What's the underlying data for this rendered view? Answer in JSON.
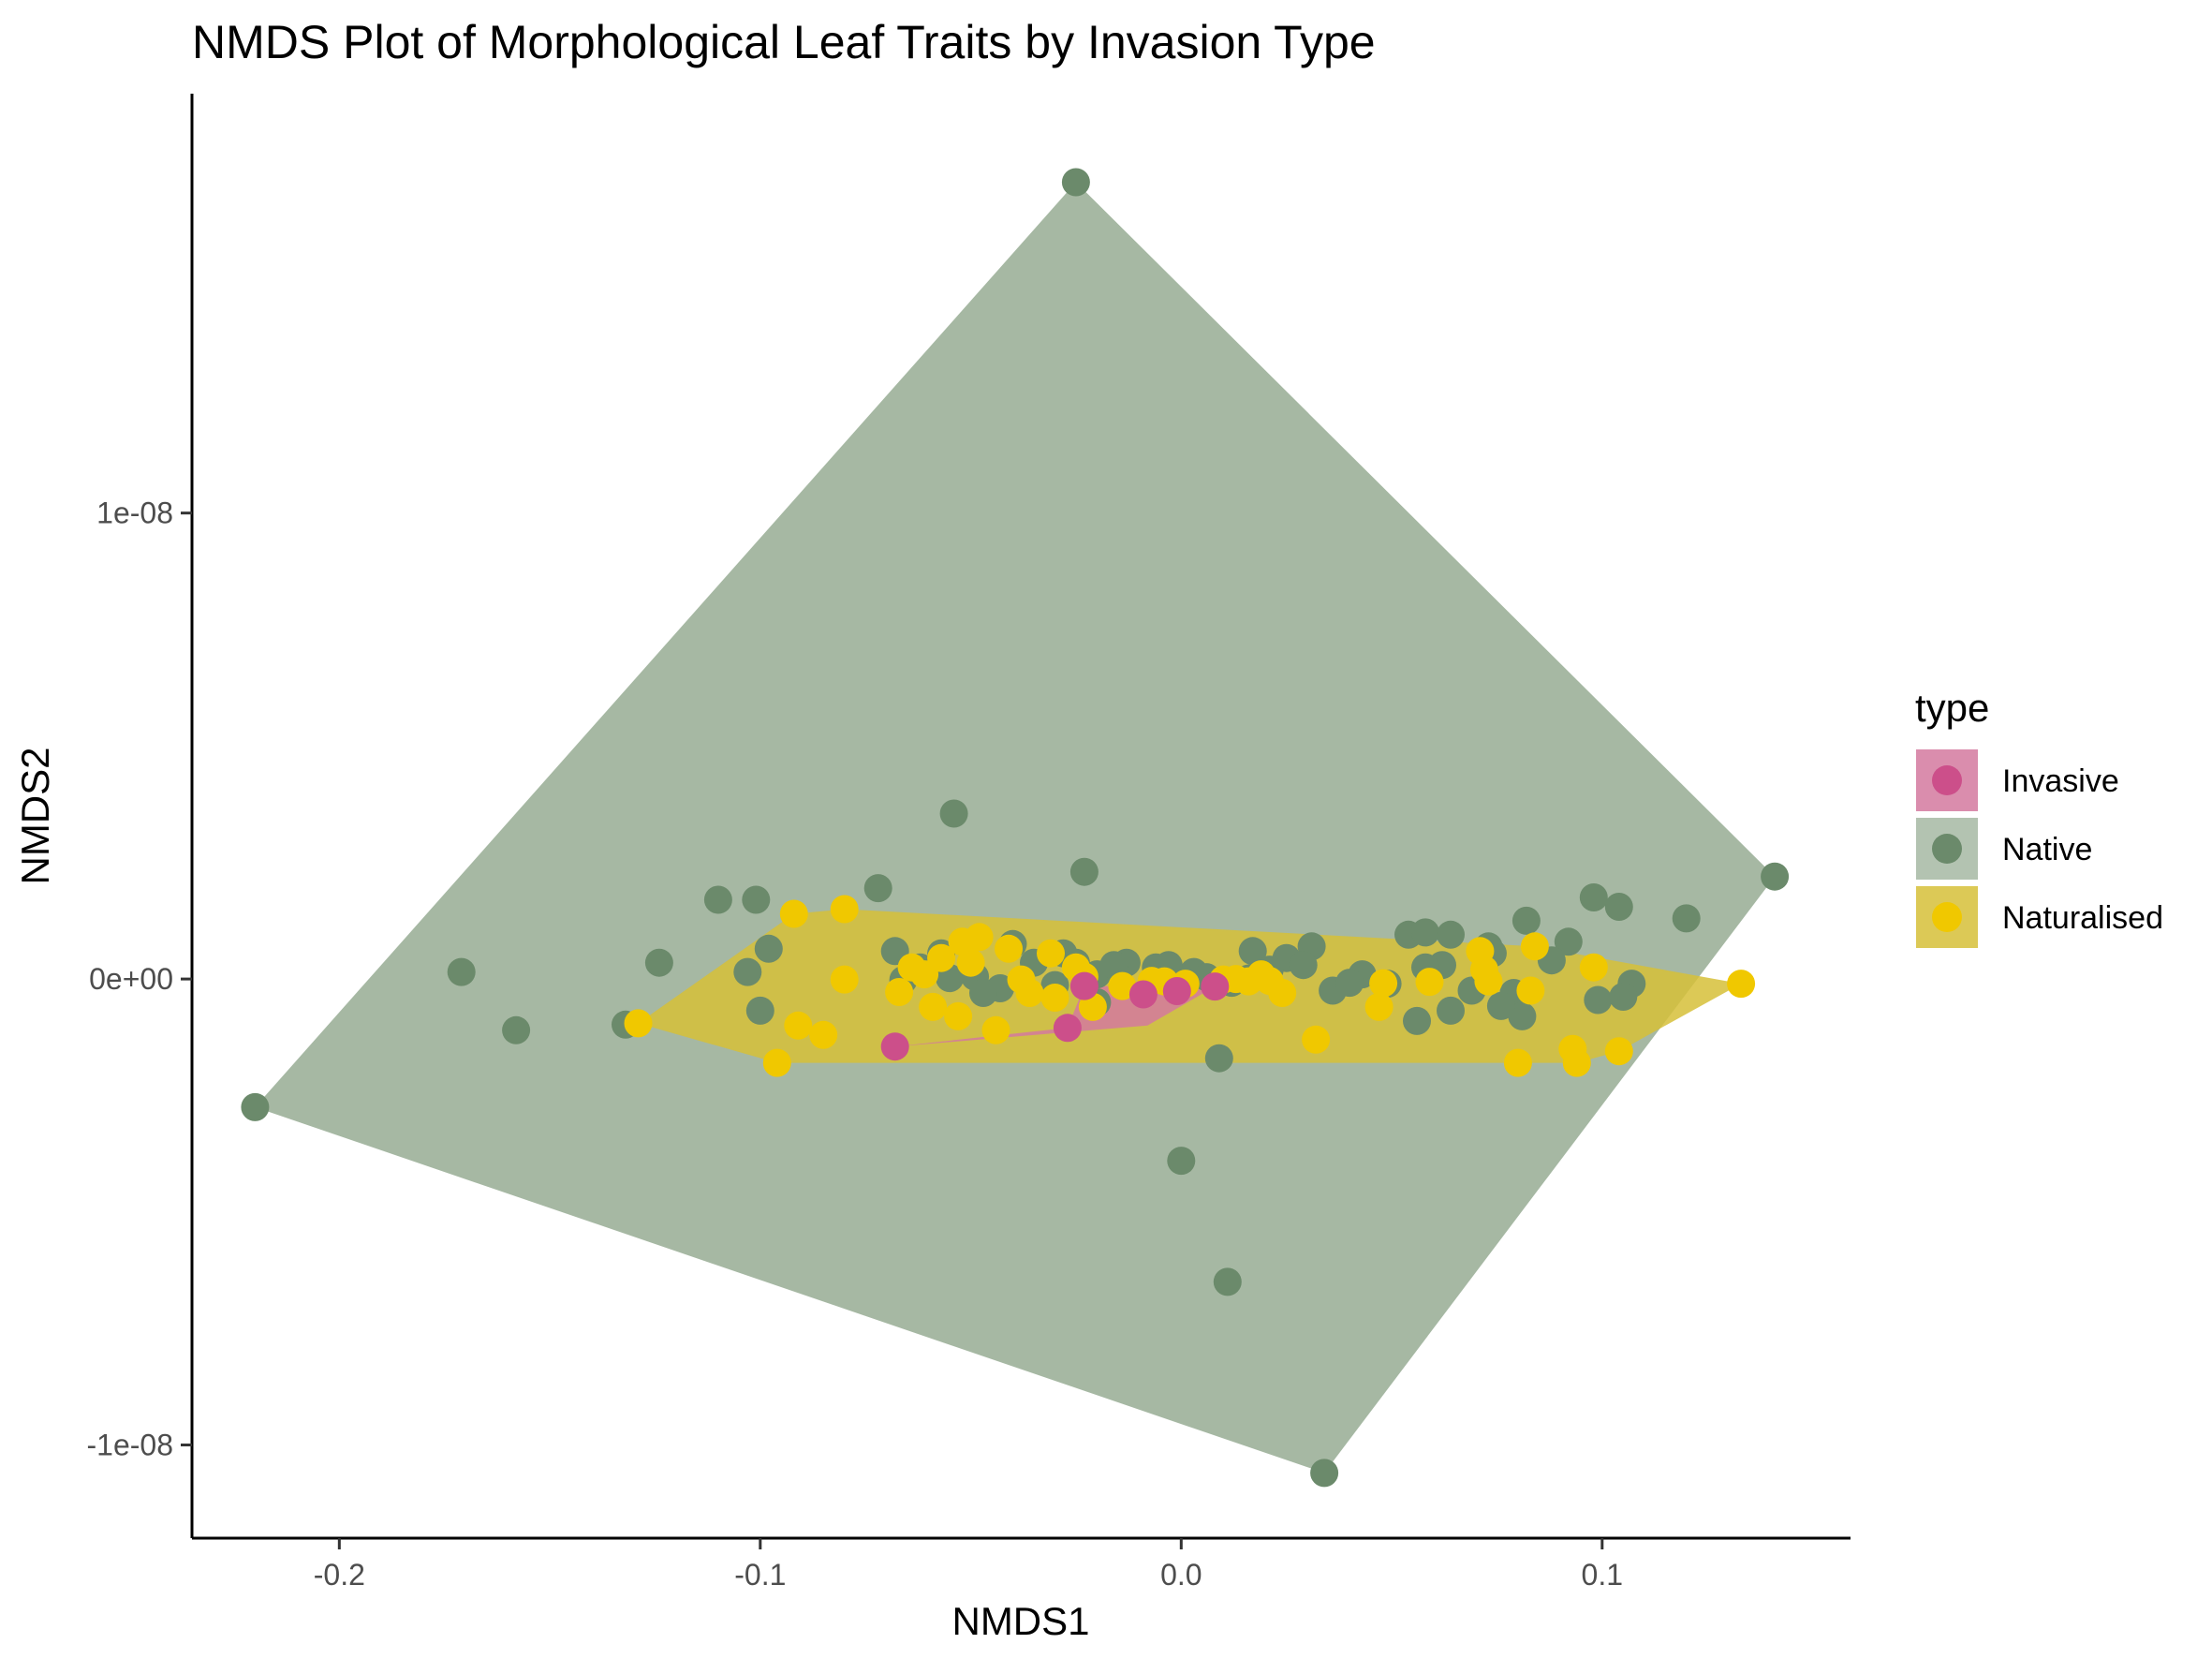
{
  "chart_data": {
    "type": "scatter",
    "title": "NMDS Plot of Morphological Leaf Traits by Invasion Type",
    "xlabel": "NMDS1",
    "ylabel": "NMDS2",
    "xlim": [
      -0.235,
      0.159
    ],
    "ylim": [
      -1.2e-08,
      1.9e-08
    ],
    "x_ticks": [
      -0.2,
      -0.1,
      0.0,
      0.1
    ],
    "x_tick_labels": [
      "-0.2",
      "-0.1",
      "0.0",
      "0.1"
    ],
    "y_ticks": [
      -1e-08,
      0,
      1e-08
    ],
    "y_tick_labels": [
      "-1e-08",
      "0e+00",
      "1e-08"
    ],
    "grid": false,
    "legend": {
      "title": "type",
      "position": "right"
    },
    "series": [
      {
        "name": "Invasive",
        "color": "#cc4f8a",
        "hull_color": "#d4799f",
        "hull": [
          [
            -0.068,
            -1.45e-09
          ],
          [
            -0.027,
            -1.05e-09
          ],
          [
            -0.023,
            -1.5e-10
          ],
          [
            0.008,
            -1.6e-10
          ],
          [
            -0.008,
            -1e-09
          ]
        ],
        "points": [
          [
            -0.068,
            -1.45e-09
          ],
          [
            -0.027,
            -1.05e-09
          ],
          [
            -0.023,
            -1.5e-10
          ],
          [
            -0.009,
            -3.3e-10
          ],
          [
            -0.001,
            -2.6e-10
          ],
          [
            0.008,
            -1.6e-10
          ]
        ]
      },
      {
        "name": "Native",
        "color": "#6b8a6b",
        "hull_color": "#a6b8a3",
        "hull": [
          [
            -0.22,
            -2.75e-09
          ],
          [
            -0.025,
            1.71e-08
          ],
          [
            0.141,
            2.2e-09
          ],
          [
            0.034,
            -1.06e-08
          ]
        ],
        "points": [
          [
            -0.22,
            -2.75e-09
          ],
          [
            -0.025,
            1.71e-08
          ],
          [
            0.141,
            2.2e-09
          ],
          [
            0.034,
            -1.06e-08
          ],
          [
            -0.054,
            3.55e-09
          ],
          [
            -0.023,
            2.3e-09
          ],
          [
            -0.072,
            1.95e-09
          ],
          [
            -0.11,
            1.7e-09
          ],
          [
            -0.101,
            1.7e-09
          ],
          [
            -0.171,
            1.5e-10
          ],
          [
            -0.158,
            -1.1e-09
          ],
          [
            -0.124,
            3.5e-10
          ],
          [
            -0.098,
            6.5e-10
          ],
          [
            -0.103,
            1.5e-10
          ],
          [
            -0.132,
            -9.8e-10
          ],
          [
            -0.1,
            -6.8e-10
          ],
          [
            -0.068,
            6e-10
          ],
          [
            -0.062,
            2.5e-10
          ],
          [
            -0.057,
            5.5e-10
          ],
          [
            -0.049,
            5e-11
          ],
          [
            -0.043,
            -2e-10
          ],
          [
            -0.04,
            7.5e-10
          ],
          [
            -0.035,
            3.5e-10
          ],
          [
            -0.028,
            5.5e-10
          ],
          [
            -0.02,
            1e-10
          ],
          [
            -0.013,
            3.5e-10
          ],
          [
            -0.006,
            2.5e-10
          ],
          [
            0.003,
            1.5e-10
          ],
          [
            0.012,
            -8e-11
          ],
          [
            0.017,
            6e-10
          ],
          [
            0.025,
            4.5e-10
          ],
          [
            0.031,
            7e-10
          ],
          [
            0.036,
            -2.5e-10
          ],
          [
            0.043,
            1e-10
          ],
          [
            0.054,
            9.5e-10
          ],
          [
            0.058,
            1e-09
          ],
          [
            0.064,
            9.5e-10
          ],
          [
            0.069,
            -2.5e-10
          ],
          [
            0.074,
            5.5e-10
          ],
          [
            0.079,
            -3e-10
          ],
          [
            0.082,
            1.25e-09
          ],
          [
            0.092,
            8e-10
          ],
          [
            0.098,
            1.75e-09
          ],
          [
            0.104,
            1.55e-09
          ],
          [
            0.12,
            1.3e-09
          ],
          [
            0.107,
            -1e-10
          ],
          [
            0.099,
            -4.5e-10
          ],
          [
            0.056,
            -9e-10
          ],
          [
            0.064,
            -6.8e-10
          ],
          [
            0.009,
            -1.7e-09
          ],
          [
            0.0,
            -3.9e-09
          ],
          [
            0.011,
            -6.5e-09
          ],
          [
            -0.02,
            -5e-10
          ],
          [
            -0.03,
            -1.3e-10
          ],
          [
            -0.066,
            -2e-11
          ],
          [
            -0.047,
            -3e-10
          ],
          [
            -0.055,
            2e-11
          ],
          [
            0.0,
            -1.5e-10
          ],
          [
            0.04,
            -8e-11
          ],
          [
            0.016,
            1e-11
          ],
          [
            0.021,
            2e-10
          ],
          [
            0.049,
            -1e-10
          ],
          [
            0.062,
            3e-10
          ],
          [
            0.073,
            7e-10
          ],
          [
            0.088,
            4e-10
          ],
          [
            0.081,
            -8e-10
          ],
          [
            0.105,
            -3.8e-10
          ],
          [
            0.076,
            -5.8e-10
          ],
          [
            0.029,
            3e-10
          ],
          [
            -0.016,
            3e-10
          ],
          [
            0.006,
            4e-11
          ],
          [
            -0.003,
            3e-10
          ],
          [
            -0.025,
            3.5e-10
          ],
          [
            0.058,
            2.5e-10
          ]
        ]
      },
      {
        "name": "Naturalised",
        "color": "#f0c800",
        "hull_color": "#d6c038",
        "hull": [
          [
            -0.129,
            -9.5e-10
          ],
          [
            -0.092,
            1.4e-09
          ],
          [
            -0.08,
            1.5e-09
          ],
          [
            0.084,
            7e-10
          ],
          [
            0.133,
            -1e-10
          ],
          [
            0.104,
            -1.55e-09
          ],
          [
            0.094,
            -1.8e-09
          ],
          [
            -0.096,
            -1.8e-09
          ]
        ],
        "points": [
          [
            -0.129,
            -9.5e-10
          ],
          [
            -0.092,
            1.4e-09
          ],
          [
            -0.08,
            1.5e-09
          ],
          [
            0.084,
            7e-10
          ],
          [
            0.133,
            -1e-10
          ],
          [
            0.104,
            -1.55e-09
          ],
          [
            0.094,
            -1.8e-09
          ],
          [
            -0.096,
            -1.8e-09
          ],
          [
            -0.08,
            -1e-11
          ],
          [
            -0.091,
            -1e-09
          ],
          [
            -0.085,
            -1.2e-09
          ],
          [
            -0.067,
            -2.8e-10
          ],
          [
            -0.059,
            -6e-10
          ],
          [
            -0.053,
            -8e-10
          ],
          [
            -0.044,
            -1.1e-09
          ],
          [
            -0.064,
            2.5e-10
          ],
          [
            -0.061,
            1e-10
          ],
          [
            -0.057,
            4.5e-10
          ],
          [
            -0.052,
            8e-10
          ],
          [
            -0.048,
            9e-10
          ],
          [
            -0.041,
            6.5e-10
          ],
          [
            -0.038,
            -1e-11
          ],
          [
            -0.036,
            -3e-10
          ],
          [
            -0.03,
            -4e-10
          ],
          [
            -0.031,
            5.5e-10
          ],
          [
            -0.023,
            5e-11
          ],
          [
            -0.021,
            -6e-10
          ],
          [
            -0.014,
            -1.5e-10
          ],
          [
            -0.004,
            -5e-11
          ],
          [
            0.001,
            -1e-10
          ],
          [
            0.016,
            -5e-11
          ],
          [
            0.021,
            -4e-11
          ],
          [
            0.024,
            -3e-10
          ],
          [
            0.032,
            -1.3e-09
          ],
          [
            0.047,
            -6e-10
          ],
          [
            0.048,
            -9e-11
          ],
          [
            0.059,
            -6e-11
          ],
          [
            0.071,
            6e-10
          ],
          [
            0.072,
            2e-10
          ],
          [
            0.073,
            -5e-11
          ],
          [
            0.083,
            -2.5e-10
          ],
          [
            0.08,
            -1.8e-09
          ],
          [
            0.093,
            -1.5e-09
          ],
          [
            0.098,
            2.5e-10
          ],
          [
            0.013,
            0.0
          ],
          [
            0.01,
            -1e-11
          ],
          [
            0.019,
            1e-10
          ],
          [
            -0.007,
            -4e-11
          ],
          [
            -0.025,
            2.5e-10
          ],
          [
            -0.05,
            3.5e-10
          ]
        ]
      }
    ]
  }
}
